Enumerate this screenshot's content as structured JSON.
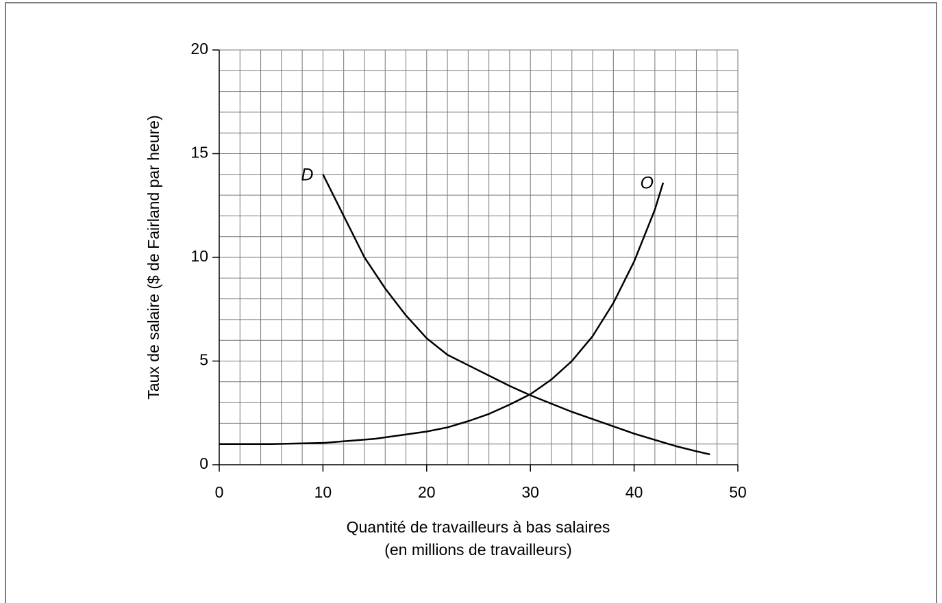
{
  "chart_data": {
    "type": "line",
    "x_label": [
      "Quantité de travailleurs à bas salaires",
      "(en millions de travailleurs)"
    ],
    "y_label": "Taux de salaire ($ de Fairland par heure)",
    "series": [
      {
        "name": "D",
        "color": "#000000",
        "x": [
          10,
          12,
          14,
          16,
          18,
          20,
          22,
          24,
          26,
          28,
          30,
          32,
          34,
          36,
          38,
          40,
          42,
          44,
          46,
          47.3
        ],
        "values": [
          14,
          12,
          10,
          8.5,
          7.2,
          6.1,
          5.3,
          4.8,
          4.3,
          3.8,
          3.35,
          2.95,
          2.55,
          2.2,
          1.85,
          1.5,
          1.2,
          0.9,
          0.65,
          0.5
        ]
      },
      {
        "name": "O",
        "color": "#000000",
        "x": [
          0,
          5,
          10,
          15,
          20,
          22,
          24,
          26,
          28,
          30,
          32,
          34,
          36,
          38,
          40,
          42,
          42.8
        ],
        "values": [
          1,
          1,
          1.05,
          1.25,
          1.6,
          1.8,
          2.1,
          2.45,
          2.9,
          3.4,
          4.1,
          5,
          6.2,
          7.8,
          9.8,
          12.3,
          13.6
        ]
      }
    ],
    "xlim": [
      0,
      50
    ],
    "xticks": [
      0,
      10,
      20,
      30,
      40,
      50
    ],
    "ylim": [
      0,
      20
    ],
    "yticks": [
      0,
      5,
      10,
      15,
      20
    ],
    "grid": true,
    "minor_grid": {
      "x": 2,
      "y": 1
    }
  }
}
